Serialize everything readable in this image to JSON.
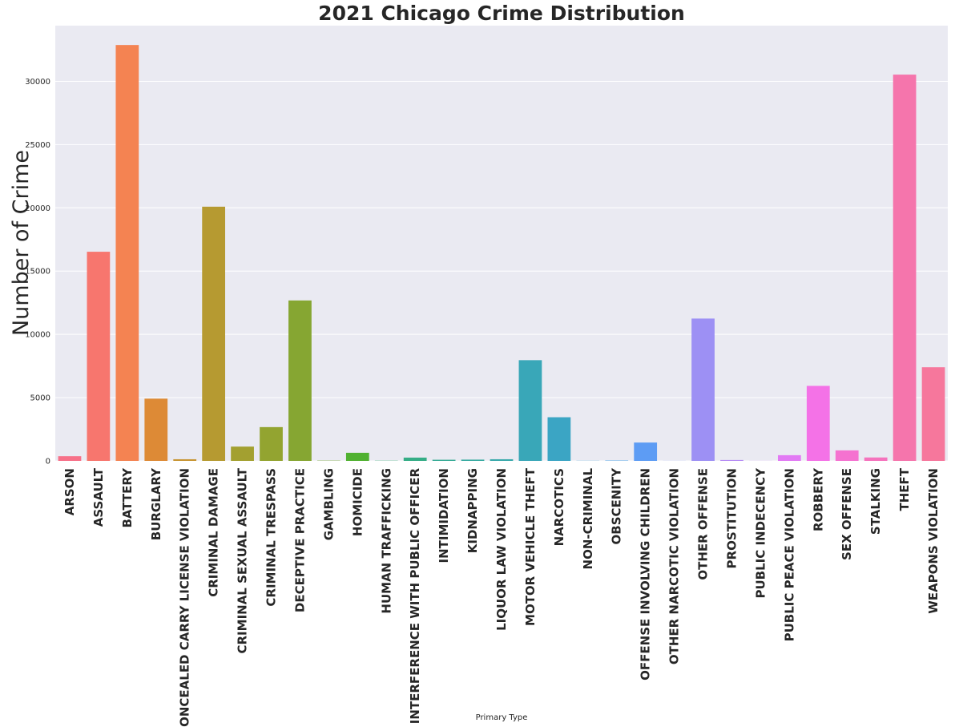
{
  "chart_data": {
    "type": "bar",
    "title": "2021 Chicago Crime Distribution",
    "xlabel": "Primary Type",
    "ylabel": "Number of Crime",
    "ylim": [
      0,
      34400
    ],
    "yticks": [
      0,
      5000,
      10000,
      15000,
      20000,
      25000,
      30000
    ],
    "grid": true,
    "categories": [
      "ARSON",
      "ASSAULT",
      "BATTERY",
      "BURGLARY",
      "CONCEALED CARRY LICENSE VIOLATION",
      "CRIMINAL DAMAGE",
      "CRIMINAL SEXUAL ASSAULT",
      "CRIMINAL TRESPASS",
      "DECEPTIVE PRACTICE",
      "GAMBLING",
      "HOMICIDE",
      "HUMAN TRAFFICKING",
      "INTERFERENCE WITH PUBLIC OFFICER",
      "INTIMIDATION",
      "KIDNAPPING",
      "LIQUOR LAW VIOLATION",
      "MOTOR VEHICLE THEFT",
      "NARCOTICS",
      "NON-CRIMINAL",
      "OBSCENITY",
      "OFFENSE INVOLVING CHILDREN",
      "OTHER NARCOTIC VIOLATION",
      "OTHER OFFENSE",
      "PROSTITUTION",
      "PUBLIC INDECENCY",
      "PUBLIC PEACE VIOLATION",
      "ROBBERY",
      "SEX OFFENSE",
      "STALKING",
      "THEFT",
      "WEAPONS VIOLATION"
    ],
    "values": [
      370,
      16530,
      32870,
      4920,
      130,
      20090,
      1130,
      2670,
      12680,
      20,
      640,
      15,
      260,
      90,
      100,
      130,
      7960,
      3450,
      10,
      25,
      1450,
      5,
      11250,
      70,
      5,
      450,
      5930,
      830,
      270,
      30530,
      7400
    ],
    "colors": [
      "#f77189",
      "#f7766e",
      "#f48352",
      "#dd8a36",
      "#c79432",
      "#b69a31",
      "#a3a030",
      "#93a430",
      "#86a632",
      "#76a832",
      "#50b131",
      "#34af6f",
      "#35ad86",
      "#36ab95",
      "#37aaa0",
      "#38a9ab",
      "#39a7b8",
      "#3ba5c4",
      "#3da3d3",
      "#44a0e8",
      "#5d9cf4",
      "#7d96f4",
      "#9d90f4",
      "#b58af4",
      "#cc82f4",
      "#e27af4",
      "#f472e7",
      "#f572d0",
      "#f573bd",
      "#f575ac",
      "#f6779c"
    ]
  }
}
